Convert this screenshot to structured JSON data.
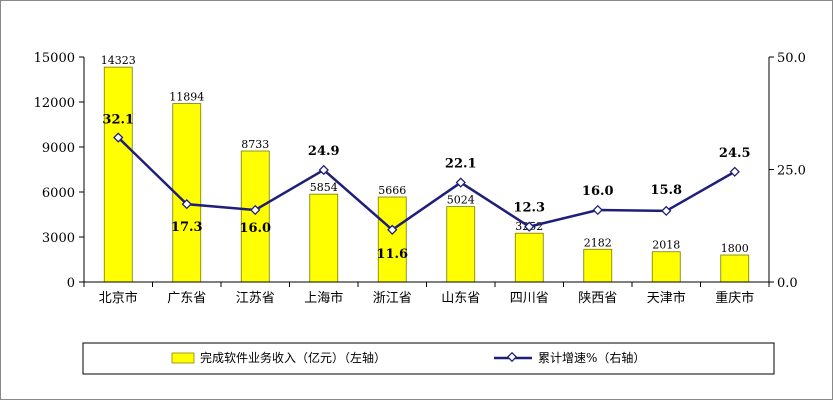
{
  "chart_data": {
    "type": "bar",
    "categories": [
      "北京市",
      "广东省",
      "江苏省",
      "上海市",
      "浙江省",
      "山东省",
      "四川省",
      "陕西省",
      "天津市",
      "重庆市"
    ],
    "series": [
      {
        "name": "完成软件业务收入（亿元）（左轴）",
        "type": "bar",
        "axis": "left",
        "color": "#FFFF00",
        "values": [
          14323,
          11894,
          8733,
          5854,
          5666,
          5024,
          3252,
          2182,
          2018,
          1800
        ],
        "labels": [
          "14323",
          "11894",
          "8733",
          "5854",
          "5666",
          "5024",
          "3252",
          "2182",
          "2018",
          "1800"
        ]
      },
      {
        "name": "累计增速%（右轴）",
        "type": "line",
        "axis": "right",
        "color": "#1F1F7A",
        "values": [
          32.1,
          17.3,
          16.0,
          24.9,
          11.6,
          22.1,
          12.3,
          16.0,
          15.8,
          24.5
        ],
        "labels": [
          "32.1",
          "17.3",
          "16.0",
          "24.9",
          "11.6",
          "22.1",
          "12.3",
          "16.0",
          "15.8",
          "24.5"
        ]
      }
    ],
    "left_axis": {
      "ylim": [
        0,
        15000
      ],
      "ticks": [
        0,
        3000,
        6000,
        9000,
        12000,
        15000
      ],
      "tick_labels": [
        "0",
        "3000",
        "6000",
        "9000",
        "12000",
        "15000"
      ]
    },
    "right_axis": {
      "ylim": [
        0,
        50
      ],
      "ticks": [
        0,
        25,
        50
      ],
      "tick_labels": [
        "0.0",
        "25.0",
        "50.0"
      ]
    },
    "grid": false,
    "legend_position": "bottom"
  }
}
